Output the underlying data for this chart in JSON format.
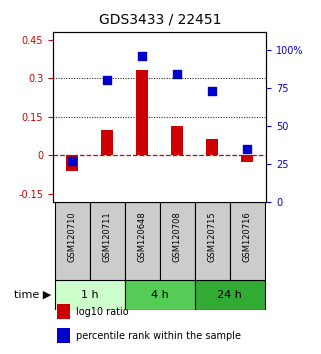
{
  "title": "GDS3433 / 22451",
  "samples": [
    "GSM120710",
    "GSM120711",
    "GSM120648",
    "GSM120708",
    "GSM120715",
    "GSM120716"
  ],
  "log10_ratio": [
    -0.06,
    0.1,
    0.33,
    0.115,
    0.065,
    -0.025
  ],
  "percentile_rank": [
    27,
    80,
    96,
    84,
    73,
    35
  ],
  "groups": [
    {
      "label": "1 h",
      "indices": [
        0,
        1
      ],
      "color": "#ccffcc"
    },
    {
      "label": "4 h",
      "indices": [
        2,
        3
      ],
      "color": "#55cc55"
    },
    {
      "label": "24 h",
      "indices": [
        4,
        5
      ],
      "color": "#33aa33"
    }
  ],
  "bar_color": "#cc0000",
  "dot_color": "#0000cc",
  "left_ylim": [
    -0.18,
    0.48
  ],
  "right_ylim": [
    0,
    112
  ],
  "left_yticks": [
    -0.15,
    0.0,
    0.15,
    0.3,
    0.45
  ],
  "left_yticklabels": [
    "-0.15",
    "0",
    "0.15",
    "0.3",
    "0.45"
  ],
  "right_yticks": [
    0,
    25,
    50,
    75,
    100
  ],
  "right_yticklabels": [
    "0",
    "25",
    "50",
    "75",
    "100%"
  ],
  "hlines": [
    0.15,
    0.3
  ],
  "zero_line_color": "#cc0000",
  "dot_size": 35,
  "bar_width": 0.35,
  "label_log10": "log10 ratio",
  "label_pct": "percentile rank within the sample",
  "time_label": "time",
  "title_fontsize": 10,
  "tick_fontsize": 7,
  "legend_fontsize": 7,
  "group_label_fontsize": 8,
  "sample_label_fontsize": 6,
  "label_color_gray": "#aaaaaa",
  "cell_color": "#cccccc"
}
